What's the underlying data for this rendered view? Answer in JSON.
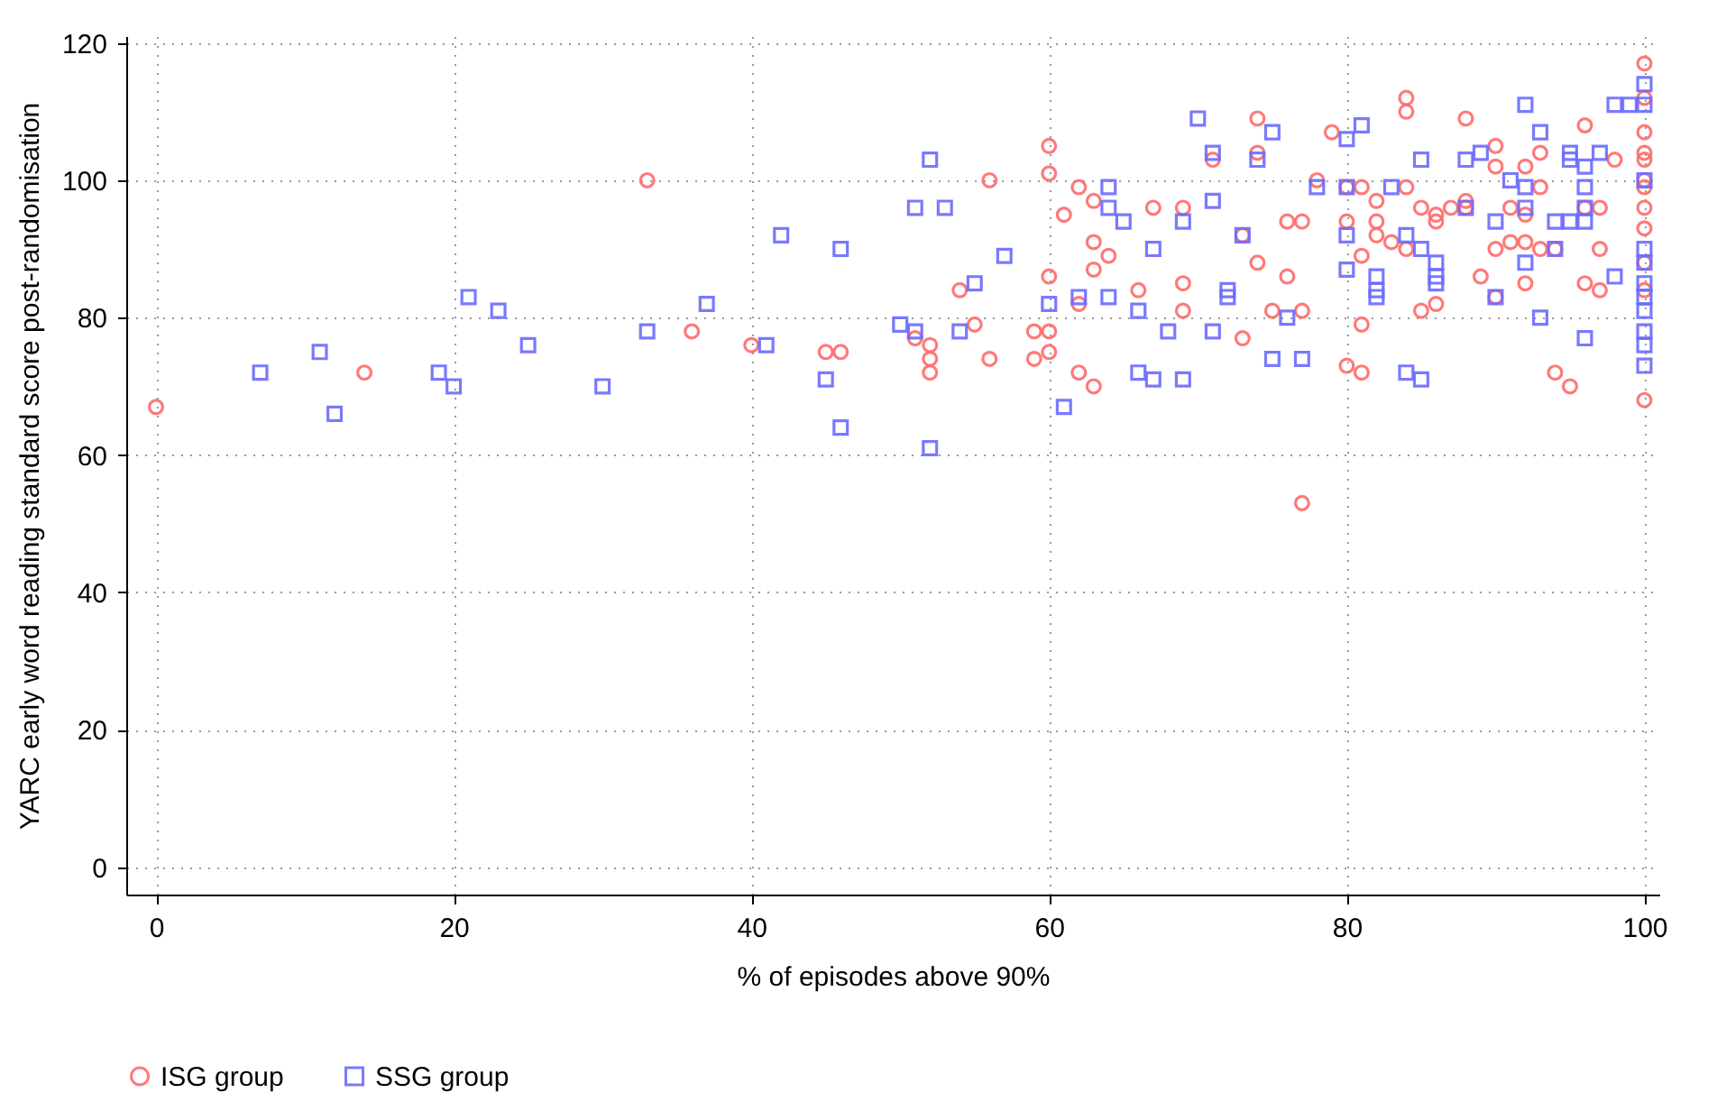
{
  "chart_data": {
    "type": "scatter",
    "xlabel": "% of episodes above 90%",
    "ylabel": "YARC early word reading standard score post-randomisation",
    "xlim": [
      -2,
      101
    ],
    "ylim": [
      -4,
      121
    ],
    "xticks": [
      0,
      20,
      40,
      60,
      80,
      100
    ],
    "yticks": [
      0,
      20,
      40,
      60,
      80,
      100,
      120
    ],
    "grid": true,
    "legend": "bottom",
    "series": [
      {
        "name": "ISG group",
        "color": "#ff6b6b",
        "marker": "circle",
        "x": [
          0,
          14,
          33,
          36,
          40,
          45,
          46,
          51,
          52,
          52,
          52,
          54,
          55,
          56,
          56,
          59,
          59,
          60,
          60,
          60,
          60,
          60,
          61,
          62,
          62,
          62,
          63,
          63,
          63,
          63,
          64,
          66,
          67,
          69,
          69,
          69,
          71,
          73,
          73,
          74,
          74,
          74,
          75,
          76,
          76,
          77,
          77,
          77,
          78,
          79,
          80,
          80,
          81,
          81,
          81,
          81,
          82,
          82,
          82,
          83,
          84,
          84,
          84,
          84,
          85,
          85,
          86,
          86,
          86,
          87,
          88,
          88,
          88,
          89,
          90,
          90,
          90,
          90,
          91,
          91,
          92,
          92,
          92,
          93,
          93,
          93,
          94,
          94,
          95,
          96,
          96,
          96,
          97,
          97,
          97,
          100,
          100,
          100,
          100,
          100,
          100,
          100,
          100,
          100,
          100,
          100,
          100,
          98,
          92,
          80
        ],
        "values": [
          67,
          72,
          100,
          78,
          76,
          75,
          75,
          77,
          76,
          74,
          72,
          84,
          79,
          100,
          74,
          78,
          74,
          105,
          101,
          86,
          78,
          75,
          95,
          99,
          82,
          72,
          97,
          91,
          87,
          70,
          89,
          84,
          96,
          96,
          85,
          81,
          103,
          92,
          77,
          109,
          104,
          88,
          81,
          94,
          86,
          94,
          81,
          53,
          100,
          107,
          94,
          73,
          99,
          89,
          79,
          72,
          97,
          94,
          92,
          91,
          112,
          110,
          99,
          90,
          96,
          81,
          95,
          94,
          82,
          96,
          109,
          97,
          96,
          86,
          105,
          102,
          90,
          83,
          96,
          91,
          95,
          91,
          85,
          99,
          90,
          104,
          90,
          72,
          70,
          108,
          96,
          85,
          96,
          90,
          84,
          117,
          112,
          107,
          104,
          103,
          100,
          99,
          96,
          93,
          88,
          84,
          68,
          103,
          102,
          99
        ]
      },
      {
        "name": "SSG group",
        "color": "#6b6bff",
        "marker": "square",
        "x": [
          7,
          11,
          12,
          19,
          20,
          21,
          23,
          25,
          30,
          33,
          37,
          41,
          42,
          45,
          46,
          46,
          50,
          51,
          51,
          52,
          52,
          53,
          54,
          55,
          57,
          60,
          61,
          62,
          64,
          64,
          64,
          65,
          66,
          66,
          67,
          67,
          68,
          69,
          69,
          70,
          71,
          71,
          71,
          72,
          72,
          73,
          74,
          75,
          75,
          76,
          77,
          78,
          80,
          80,
          80,
          80,
          81,
          82,
          82,
          82,
          83,
          84,
          84,
          85,
          85,
          85,
          86,
          86,
          86,
          88,
          88,
          89,
          90,
          90,
          91,
          92,
          92,
          92,
          92,
          93,
          93,
          94,
          94,
          95,
          95,
          95,
          96,
          96,
          96,
          96,
          96,
          97,
          98,
          98,
          99,
          100,
          100,
          100,
          100,
          100,
          100,
          100,
          100,
          100,
          100,
          100
        ],
        "values": [
          72,
          75,
          66,
          72,
          70,
          83,
          81,
          76,
          70,
          78,
          82,
          76,
          92,
          71,
          90,
          64,
          79,
          96,
          78,
          103,
          61,
          96,
          78,
          85,
          89,
          82,
          67,
          83,
          99,
          96,
          83,
          94,
          81,
          72,
          90,
          71,
          78,
          94,
          71,
          109,
          104,
          97,
          78,
          84,
          83,
          92,
          103,
          107,
          74,
          80,
          74,
          99,
          106,
          99,
          87,
          92,
          108,
          86,
          84,
          83,
          99,
          92,
          72,
          103,
          90,
          71,
          88,
          86,
          85,
          103,
          96,
          104,
          94,
          83,
          100,
          111,
          99,
          96,
          88,
          107,
          80,
          94,
          90,
          104,
          103,
          94,
          102,
          99,
          96,
          94,
          77,
          104,
          111,
          86,
          111,
          114,
          111,
          100,
          90,
          88,
          85,
          83,
          81,
          78,
          76,
          73
        ]
      }
    ]
  }
}
